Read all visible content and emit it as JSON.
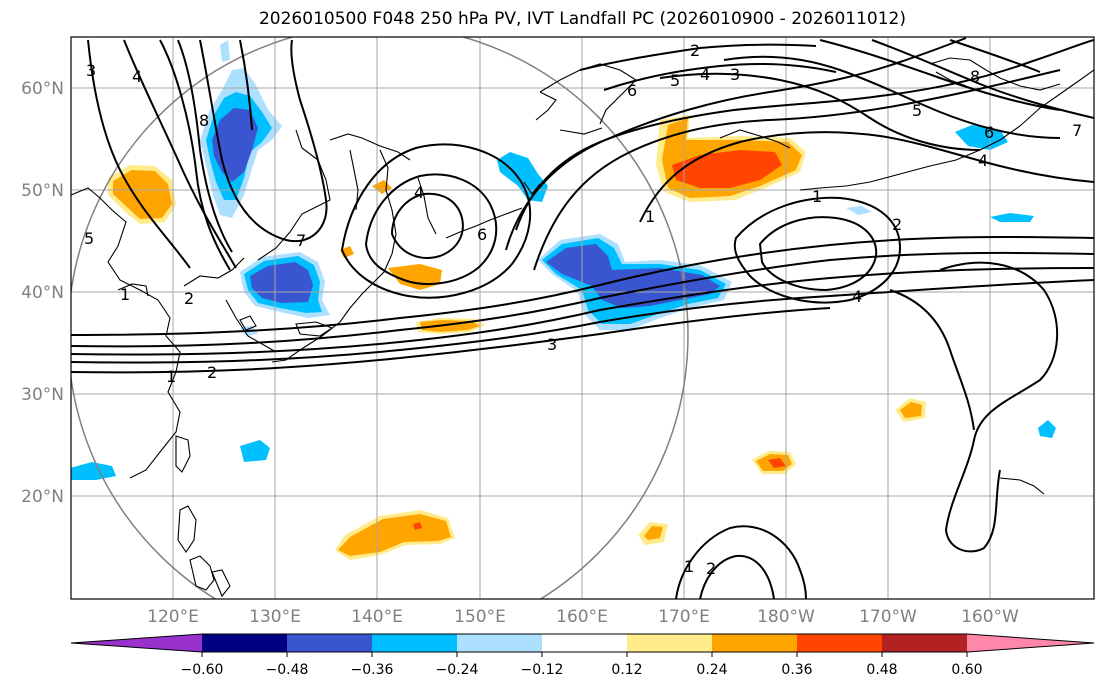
{
  "title": "2026010500 F048 250 hPa PV, IVT Landfall PC (2026010900 - 2026011012)",
  "lat_labels": [
    "60°N",
    "50°N",
    "40°N",
    "30°N",
    "20°N"
  ],
  "lon_labels": [
    "120°E",
    "130°E",
    "140°E",
    "150°E",
    "160°E",
    "170°E",
    "180°W",
    "170°W",
    "160°W"
  ],
  "contour_labels": [
    "3",
    "4",
    "8",
    "5",
    "1",
    "2",
    "4",
    "6",
    "7",
    "2",
    "3",
    "4",
    "5",
    "6",
    "5",
    "4",
    "1",
    "2",
    "4",
    "1",
    "2",
    "3",
    "1",
    "1",
    "2",
    "7",
    "8",
    "6",
    "7"
  ],
  "colorbar": {
    "ticks": [
      "−0.60",
      "−0.48",
      "−0.36",
      "−0.24",
      "−0.12",
      "0.12",
      "0.24",
      "0.36",
      "0.48",
      "0.60"
    ],
    "colors": [
      "#9932CC",
      "#000080",
      "#3A55D0",
      "#00BFFF",
      "#ADDFFF",
      "#FFFFFF",
      "#FFEB8A",
      "#FFA500",
      "#FF4500",
      "#B22222",
      "#FF88AA"
    ]
  }
}
